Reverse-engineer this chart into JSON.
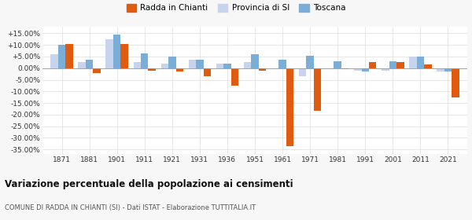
{
  "years": [
    1871,
    1881,
    1901,
    1911,
    1921,
    1931,
    1936,
    1951,
    1961,
    1971,
    1981,
    1991,
    2001,
    2011,
    2021
  ],
  "radda": [
    10.5,
    -2.0,
    10.5,
    -1.0,
    -1.5,
    -3.5,
    -7.5,
    -1.0,
    -33.5,
    -18.5,
    -0.5,
    2.5,
    2.5,
    1.5,
    -12.5
  ],
  "provincia": [
    6.0,
    2.5,
    12.5,
    2.5,
    2.0,
    3.5,
    2.0,
    2.5,
    -0.5,
    -3.5,
    -0.5,
    -1.0,
    -1.0,
    5.0,
    -1.5
  ],
  "toscana": [
    10.0,
    3.5,
    14.5,
    6.5,
    5.0,
    3.5,
    2.0,
    6.0,
    3.5,
    5.5,
    3.0,
    -1.5,
    3.0,
    5.0,
    -1.5
  ],
  "radda_color": "#e05a10",
  "provincia_color": "#c8d4ed",
  "toscana_color": "#7aaed6",
  "title": "Variazione percentuale della popolazione ai censimenti",
  "subtitle": "COMUNE DI RADDA IN CHIANTI (SI) - Dati ISTAT - Elaborazione TUTTITALIA.IT",
  "ylim": [
    -37,
    18
  ],
  "yticks": [
    -35.0,
    -30.0,
    -25.0,
    -20.0,
    -15.0,
    -10.0,
    -5.0,
    0.0,
    5.0,
    10.0,
    15.0
  ],
  "ytick_labels": [
    "-35.00%",
    "-30.00%",
    "-25.00%",
    "-20.00%",
    "-15.00%",
    "-10.00%",
    "-5.00%",
    "0.00%",
    "+5.00%",
    "+10.00%",
    "+15.00%"
  ],
  "background_color": "#f7f7f7",
  "plot_bg_color": "#ffffff",
  "legend_labels": [
    "Radda in Chianti",
    "Provincia di SI",
    "Toscana"
  ],
  "bar_width": 0.27
}
